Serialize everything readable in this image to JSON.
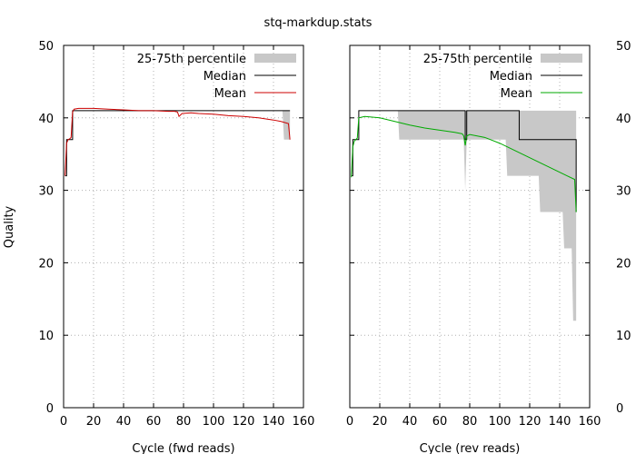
{
  "figure": {
    "title": "stq-markdup.stats",
    "ylabel": "Quality"
  },
  "chart_data": [
    {
      "type": "line",
      "title": "stq-markdup.stats",
      "xlabel": "Cycle (fwd reads)",
      "ylabel": "Quality",
      "xlim": [
        0,
        160
      ],
      "ylim": [
        0,
        50
      ],
      "xticks": [
        0,
        20,
        40,
        60,
        80,
        100,
        120,
        140,
        160
      ],
      "yticks": [
        0,
        10,
        20,
        30,
        40,
        50
      ],
      "ytick_side": "left",
      "grid": true,
      "legend": "top-right",
      "series": [
        {
          "name": "25-75th percentile",
          "kind": "band",
          "color": "#c8c8c8",
          "x": [
            1,
            2,
            3,
            4,
            5,
            6,
            7,
            146,
            147,
            150,
            151
          ],
          "low": [
            32,
            37,
            37,
            37,
            37,
            41,
            41,
            41,
            37,
            37,
            37
          ],
          "high": [
            32,
            37,
            37,
            37,
            37,
            41,
            41,
            41,
            41,
            41,
            41
          ]
        },
        {
          "name": "Median",
          "kind": "step",
          "color": "#000000",
          "x": [
            1,
            2,
            3,
            4,
            5,
            6,
            7,
            151
          ],
          "y": [
            32,
            37,
            37,
            37,
            37,
            41,
            41,
            41
          ]
        },
        {
          "name": "Mean",
          "kind": "line",
          "color": "#cc0000",
          "x": [
            1,
            2,
            3,
            4,
            5,
            6,
            7,
            10,
            20,
            30,
            40,
            50,
            60,
            70,
            74,
            76,
            77,
            79,
            85,
            90,
            100,
            110,
            120,
            130,
            140,
            145,
            150,
            151
          ],
          "y": [
            32.0,
            36.5,
            37.0,
            37.1,
            37.3,
            40.8,
            41.2,
            41.3,
            41.3,
            41.2,
            41.1,
            41.0,
            41.0,
            40.9,
            40.9,
            40.8,
            40.2,
            40.6,
            40.7,
            40.6,
            40.5,
            40.3,
            40.2,
            40.0,
            39.7,
            39.5,
            39.2,
            37.0
          ]
        }
      ]
    },
    {
      "type": "line",
      "title": "",
      "xlabel": "Cycle (rev reads)",
      "ylabel": "",
      "xlim": [
        0,
        160
      ],
      "ylim": [
        0,
        50
      ],
      "xticks": [
        0,
        20,
        40,
        60,
        80,
        100,
        120,
        140,
        160
      ],
      "yticks": [
        0,
        10,
        20,
        30,
        40,
        50
      ],
      "ytick_side": "right",
      "grid": true,
      "legend": "top-right",
      "series": [
        {
          "name": "25-75th percentile",
          "kind": "band",
          "color": "#c8c8c8",
          "x": [
            1,
            2,
            3,
            4,
            5,
            6,
            31,
            32,
            33,
            76,
            77,
            78,
            79,
            104,
            105,
            106,
            126,
            127,
            128,
            142,
            143,
            144,
            148,
            149,
            150,
            151
          ],
          "low": [
            32,
            37,
            37,
            37,
            37,
            41,
            41,
            41,
            37,
            37,
            30,
            37,
            37,
            37,
            32,
            32,
            32,
            27,
            27,
            27,
            22,
            22,
            22,
            12,
            12,
            12
          ],
          "high": [
            32,
            37,
            37,
            37,
            37,
            41,
            41,
            41,
            41,
            41,
            41,
            41,
            41,
            41,
            41,
            41,
            41,
            41,
            41,
            41,
            41,
            41,
            41,
            41,
            41,
            41
          ]
        },
        {
          "name": "Median",
          "kind": "step",
          "color": "#000000",
          "x": [
            1,
            2,
            3,
            4,
            5,
            6,
            76,
            77,
            78,
            112,
            113,
            150,
            151
          ],
          "y": [
            32,
            37,
            37,
            37,
            37,
            41,
            41,
            37,
            41,
            41,
            37,
            37,
            27
          ]
        },
        {
          "name": "Mean",
          "kind": "line",
          "color": "#00aa00",
          "x": [
            1,
            2,
            3,
            4,
            5,
            6,
            10,
            20,
            30,
            40,
            50,
            60,
            70,
            75,
            76,
            77,
            78,
            80,
            90,
            100,
            110,
            120,
            130,
            140,
            145,
            150,
            151
          ],
          "y": [
            31.8,
            36.0,
            36.8,
            37.0,
            37.2,
            40.0,
            40.2,
            40.0,
            39.5,
            39.0,
            38.6,
            38.3,
            38.0,
            37.8,
            37.5,
            36.2,
            37.5,
            37.7,
            37.3,
            36.5,
            35.5,
            34.5,
            33.5,
            32.5,
            32.0,
            31.5,
            27.0
          ]
        }
      ]
    }
  ]
}
